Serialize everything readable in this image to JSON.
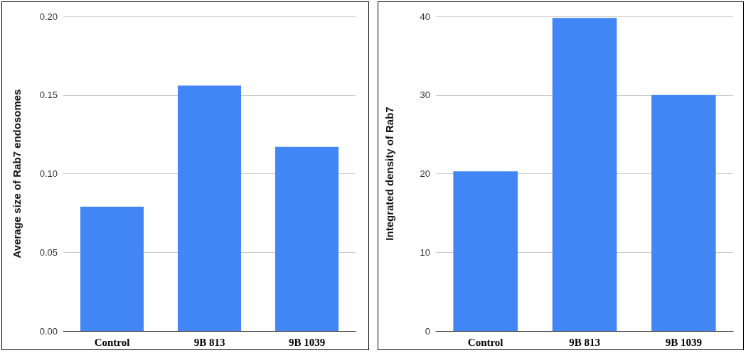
{
  "chart_data": [
    {
      "type": "bar",
      "ylabel": "Average size of Rab7 endosomes",
      "categories": [
        "Control",
        "9B 813",
        "9B 1039"
      ],
      "values": [
        0.079,
        0.156,
        0.117
      ],
      "color": "#4285f4",
      "ylim": [
        0,
        0.2
      ],
      "yticks": [
        {
          "value": 0,
          "label": "0.00"
        },
        {
          "value": 0.05,
          "label": "0.05"
        },
        {
          "value": 0.1,
          "label": "0.10"
        },
        {
          "value": 0.15,
          "label": "0.15"
        },
        {
          "value": 0.2,
          "label": "0.20"
        }
      ],
      "grid": "y"
    },
    {
      "type": "bar",
      "ylabel": "Integrated density of Rab7",
      "categories": [
        "Control",
        "9B 813",
        "9B 1039"
      ],
      "values": [
        20.3,
        39.8,
        30.0
      ],
      "color": "#4285f4",
      "ylim": [
        0,
        40
      ],
      "yticks": [
        0,
        10,
        20,
        30,
        40
      ],
      "grid": "y"
    }
  ]
}
